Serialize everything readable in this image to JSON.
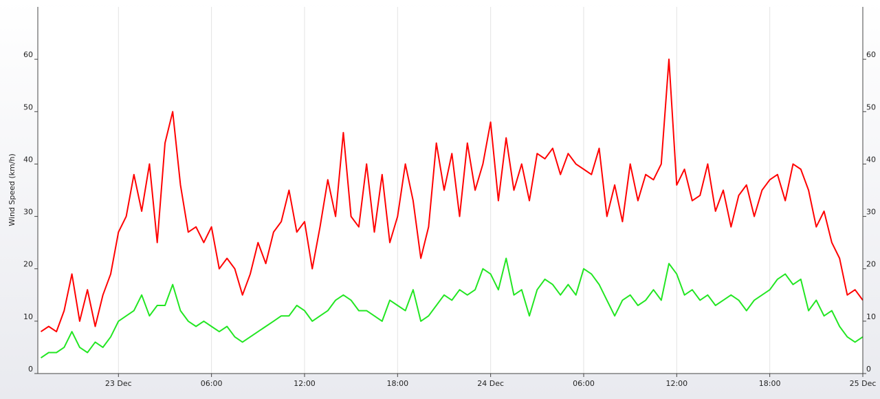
{
  "chart_data": {
    "type": "line",
    "y_label": "Wind Speed (km/h)",
    "x": [
      -5,
      -4.5,
      -4,
      -3.5,
      -3,
      -2.5,
      -2,
      -1.5,
      -1,
      -0.5,
      0,
      0.5,
      1,
      1.5,
      2,
      2.5,
      3,
      3.5,
      4,
      4.5,
      5,
      5.5,
      6,
      6.5,
      7,
      7.5,
      8,
      8.5,
      9,
      9.5,
      10,
      10.5,
      11,
      11.5,
      12,
      12.5,
      13,
      13.5,
      14,
      14.5,
      15,
      15.5,
      16,
      16.5,
      17,
      17.5,
      18,
      18.5,
      19,
      19.5,
      20,
      20.5,
      21,
      21.5,
      22,
      22.5,
      23,
      23.5,
      24,
      24.5,
      25,
      25.5,
      26,
      26.5,
      27,
      27.5,
      28,
      28.5,
      29,
      29.5,
      30,
      30.5,
      31,
      31.5,
      32,
      32.5,
      33,
      33.5,
      34,
      34.5,
      35,
      35.5,
      36,
      36.5,
      37,
      37.5,
      38,
      38.5,
      39,
      39.5,
      40,
      40.5,
      41,
      41.5,
      42,
      42.5,
      43,
      43.5,
      44,
      44.5,
      45,
      45.5,
      46,
      46.5,
      47,
      47.5,
      48
    ],
    "series": [
      {
        "color": "#ff0000",
        "values": [
          8,
          9,
          8,
          12,
          19,
          10,
          16,
          9,
          15,
          19,
          27,
          30,
          38,
          31,
          40,
          25,
          44,
          50,
          36,
          27,
          28,
          25,
          28,
          20,
          22,
          20,
          15,
          19,
          25,
          21,
          27,
          29,
          35,
          27,
          29,
          20,
          28,
          37,
          30,
          46,
          30,
          28,
          40,
          27,
          38,
          25,
          30,
          40,
          33,
          22,
          28,
          44,
          35,
          42,
          30,
          44,
          35,
          40,
          48,
          33,
          45,
          35,
          40,
          33,
          42,
          41,
          43,
          38,
          42,
          40,
          39,
          38,
          43,
          30,
          36,
          29,
          40,
          33,
          38,
          37,
          40,
          60,
          36,
          39,
          33,
          34,
          40,
          31,
          35,
          28,
          34,
          36,
          30,
          35,
          37,
          38,
          33,
          40,
          39,
          35,
          28,
          31,
          25,
          22,
          15,
          16,
          14
        ]
      },
      {
        "color": "#22e622",
        "values": [
          3,
          4,
          4,
          5,
          8,
          5,
          4,
          6,
          5,
          7,
          10,
          11,
          12,
          15,
          11,
          13,
          13,
          17,
          12,
          10,
          9,
          10,
          9,
          8,
          9,
          7,
          6,
          7,
          8,
          9,
          10,
          11,
          11,
          13,
          12,
          10,
          11,
          12,
          14,
          15,
          14,
          12,
          12,
          11,
          10,
          14,
          13,
          12,
          16,
          10,
          11,
          13,
          15,
          14,
          16,
          15,
          16,
          20,
          19,
          16,
          22,
          15,
          16,
          11,
          16,
          18,
          17,
          15,
          17,
          15,
          20,
          19,
          17,
          14,
          11,
          14,
          15,
          13,
          14,
          16,
          14,
          21,
          19,
          15,
          16,
          14,
          15,
          13,
          14,
          15,
          14,
          12,
          14,
          15,
          16,
          18,
          19,
          17,
          18,
          12,
          14,
          11,
          12,
          9,
          7,
          6,
          7
        ]
      }
    ],
    "xlim": [
      -5.2,
      48
    ],
    "xticks": [
      {
        "value": 0,
        "label": "23 Dec"
      },
      {
        "value": 6,
        "label": "06:00"
      },
      {
        "value": 12,
        "label": "12:00"
      },
      {
        "value": 18,
        "label": "18:00"
      },
      {
        "value": 24,
        "label": "24 Dec"
      },
      {
        "value": 30,
        "label": "06:00"
      },
      {
        "value": 36,
        "label": "12:00"
      },
      {
        "value": 42,
        "label": "18:00"
      },
      {
        "value": 48,
        "label": "25 Dec"
      }
    ],
    "ylim": [
      0,
      70
    ],
    "yticks": [
      0,
      10,
      20,
      30,
      40,
      50,
      60
    ],
    "grid": "x"
  }
}
